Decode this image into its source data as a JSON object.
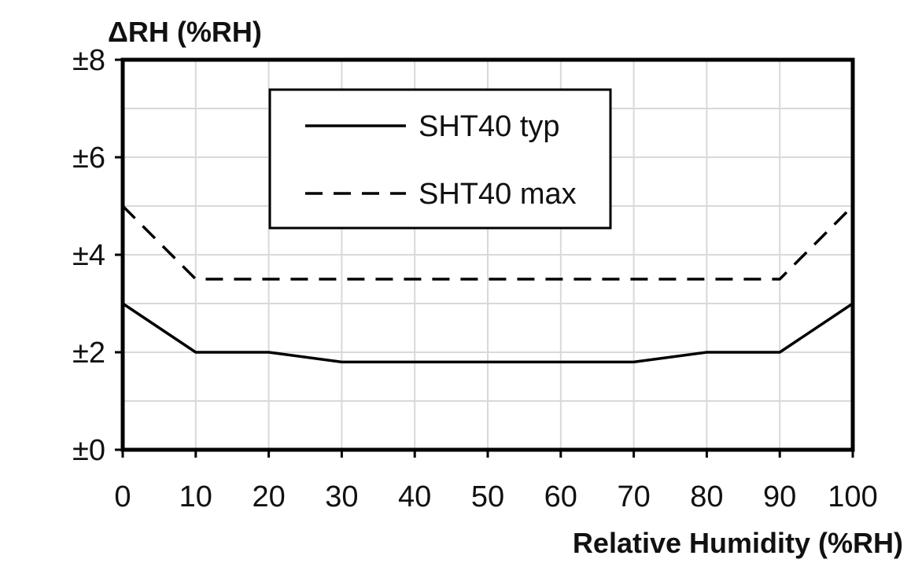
{
  "chart_data": {
    "type": "line",
    "ylabel": "ΔRH (%RH)",
    "xlabel": "Relative Humidity (%RH)",
    "xlim": [
      0,
      100
    ],
    "ylim": [
      0,
      8
    ],
    "x_ticks": [
      0,
      10,
      20,
      30,
      40,
      50,
      60,
      70,
      80,
      90,
      100
    ],
    "x_tick_labels": [
      "0",
      "10",
      "20",
      "30",
      "40",
      "50",
      "60",
      "70",
      "80",
      "90",
      "100"
    ],
    "y_ticks": [
      0,
      2,
      4,
      6,
      8
    ],
    "y_tick_labels": [
      "±0",
      "±2",
      "±4",
      "±6",
      "±8"
    ],
    "grid": true,
    "grid_x_step": 10,
    "grid_y_step": 1,
    "legend_position": "top-center",
    "series": [
      {
        "name": "SHT40 typ",
        "style": "solid",
        "color": "#000000",
        "x": [
          0,
          10,
          20,
          30,
          40,
          50,
          60,
          70,
          80,
          90,
          100
        ],
        "y": [
          3.0,
          2.0,
          2.0,
          1.8,
          1.8,
          1.8,
          1.8,
          1.8,
          2.0,
          2.0,
          3.0
        ]
      },
      {
        "name": "SHT40 max",
        "style": "dashed",
        "color": "#000000",
        "x": [
          0,
          10,
          20,
          30,
          40,
          50,
          60,
          70,
          80,
          90,
          100
        ],
        "y": [
          5.0,
          3.5,
          3.5,
          3.5,
          3.5,
          3.5,
          3.5,
          3.5,
          3.5,
          3.5,
          5.0
        ]
      }
    ]
  }
}
